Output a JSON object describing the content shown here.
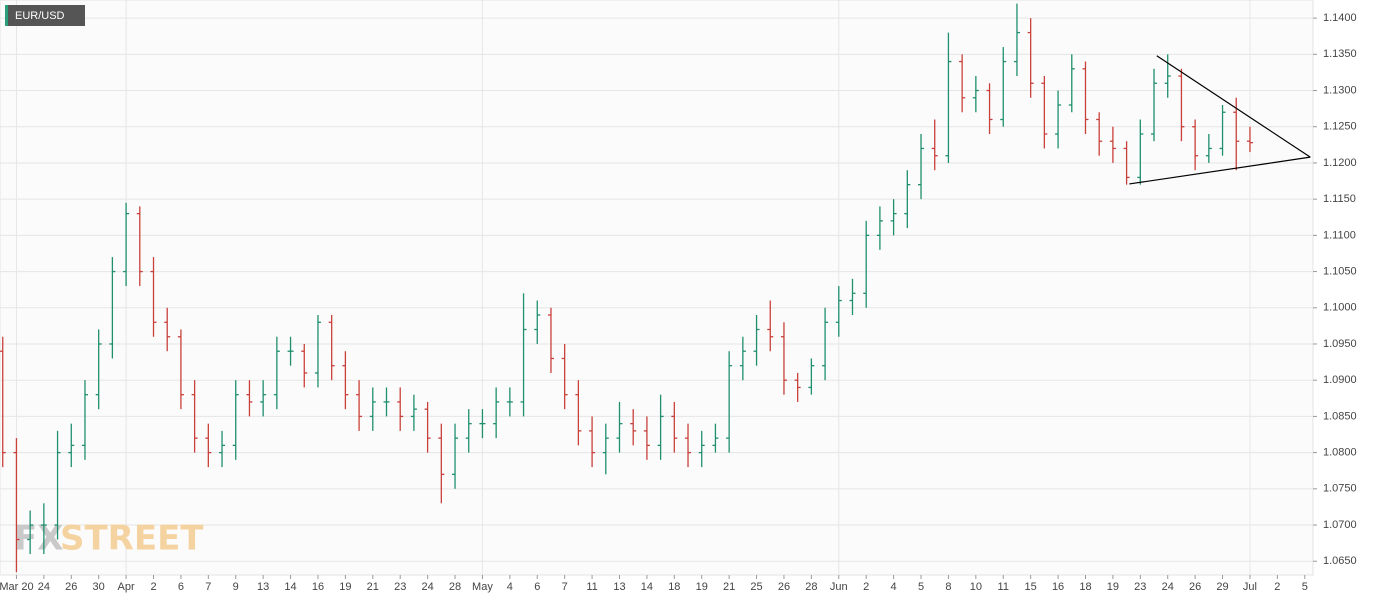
{
  "chart_data": {
    "type": "ohlc",
    "title": "EUR/USD",
    "watermark": [
      "FX",
      "STREET"
    ],
    "up_color": "#1f8f6e",
    "down_color": "#c9403a",
    "grid": true,
    "ylim": [
      1.0631,
      1.1425
    ],
    "yticks": [
      {
        "value": 1.065,
        "label": "1.0650"
      },
      {
        "value": 1.07,
        "label": "1.0700"
      },
      {
        "value": 1.075,
        "label": "1.0750"
      },
      {
        "value": 1.08,
        "label": "1.0800"
      },
      {
        "value": 1.085,
        "label": "1.0850"
      },
      {
        "value": 1.09,
        "label": "1.0900"
      },
      {
        "value": 1.095,
        "label": "1.0950"
      },
      {
        "value": 1.1,
        "label": "1.1000"
      },
      {
        "value": 1.105,
        "label": "1.1050"
      },
      {
        "value": 1.11,
        "label": "1.1100"
      },
      {
        "value": 1.115,
        "label": "1.1150"
      },
      {
        "value": 1.12,
        "label": "1.1200"
      },
      {
        "value": 1.125,
        "label": "1.1250"
      },
      {
        "value": 1.13,
        "label": "1.1300"
      },
      {
        "value": 1.135,
        "label": "1.1350"
      },
      {
        "value": 1.14,
        "label": "1.1400"
      }
    ],
    "xlim": [
      -0.6,
      47.3
    ],
    "xticks": [
      {
        "value": 0,
        "label": "Mar 20"
      },
      {
        "value": 1,
        "label": "24"
      },
      {
        "value": 2,
        "label": "26"
      },
      {
        "value": 3,
        "label": "30"
      },
      {
        "value": 4,
        "label": "Apr"
      },
      {
        "value": 5,
        "label": "2"
      },
      {
        "value": 6,
        "label": "6"
      },
      {
        "value": 7,
        "label": "7"
      },
      {
        "value": 8,
        "label": "9"
      },
      {
        "value": 9,
        "label": "13"
      },
      {
        "value": 10,
        "label": "14"
      },
      {
        "value": 11,
        "label": "16"
      },
      {
        "value": 12,
        "label": "19"
      },
      {
        "value": 13,
        "label": "21"
      },
      {
        "value": 14,
        "label": "23"
      },
      {
        "value": 15,
        "label": "24"
      },
      {
        "value": 16,
        "label": "28"
      },
      {
        "value": 17,
        "label": "May"
      },
      {
        "value": 18,
        "label": "4"
      },
      {
        "value": 19,
        "label": "6"
      },
      {
        "value": 20,
        "label": "7"
      },
      {
        "value": 21,
        "label": "11"
      },
      {
        "value": 22,
        "label": "13"
      },
      {
        "value": 23,
        "label": "14"
      },
      {
        "value": 24,
        "label": "18"
      },
      {
        "value": 25,
        "label": "19"
      },
      {
        "value": 26,
        "label": "21"
      },
      {
        "value": 27,
        "label": "25"
      },
      {
        "value": 28,
        "label": "26"
      },
      {
        "value": 29,
        "label": "28"
      },
      {
        "value": 30,
        "label": "Jun"
      },
      {
        "value": 31,
        "label": "2"
      },
      {
        "value": 32,
        "label": "4"
      },
      {
        "value": 33,
        "label": "5"
      },
      {
        "value": 34,
        "label": "8"
      },
      {
        "value": 35,
        "label": "10"
      },
      {
        "value": 36,
        "label": "11"
      },
      {
        "value": 37,
        "label": "15"
      },
      {
        "value": 38,
        "label": "16"
      },
      {
        "value": 39,
        "label": "18"
      },
      {
        "value": 40,
        "label": "19"
      },
      {
        "value": 41,
        "label": "23"
      },
      {
        "value": 42,
        "label": "24"
      },
      {
        "value": 43,
        "label": "26"
      },
      {
        "value": 44,
        "label": "29"
      },
      {
        "value": 45,
        "label": "Jul"
      },
      {
        "value": 46,
        "label": "2"
      },
      {
        "value": 47,
        "label": "5"
      }
    ],
    "x": [
      -0.5,
      0,
      0.5,
      1,
      1.5,
      2,
      2.5,
      3,
      3.5,
      4,
      4.5,
      5,
      5.5,
      6,
      6.5,
      7,
      7.5,
      8,
      8.5,
      9,
      9.5,
      10,
      10.5,
      11,
      11.5,
      12,
      12.5,
      13,
      13.5,
      14,
      14.5,
      15,
      15.5,
      16,
      16.5,
      17,
      17.5,
      18,
      18.5,
      19,
      19.5,
      20,
      20.5,
      21,
      21.5,
      22,
      22.5,
      23,
      23.5,
      24,
      24.5,
      25,
      25.5,
      26,
      26.5,
      27,
      27.5,
      28,
      28.5,
      29,
      29.5,
      30,
      30.5,
      31,
      31.5,
      32,
      32.5,
      33,
      33.5,
      34,
      34.5,
      35,
      35.5,
      36,
      36.5,
      37,
      37.5,
      38,
      38.5,
      39,
      39.5,
      40,
      40.5,
      41,
      41.5,
      42,
      42.5,
      43,
      43.5,
      44,
      44.5,
      45
    ],
    "open": [
      1.094,
      1.08,
      1.068,
      1.07,
      1.07,
      1.08,
      1.081,
      1.088,
      1.095,
      1.105,
      1.113,
      1.105,
      1.098,
      1.096,
      1.088,
      1.082,
      1.08,
      1.081,
      1.088,
      1.087,
      1.088,
      1.094,
      1.094,
      1.091,
      1.098,
      1.092,
      1.088,
      1.085,
      1.087,
      1.087,
      1.085,
      1.086,
      1.082,
      1.077,
      1.082,
      1.084,
      1.084,
      1.087,
      1.087,
      1.097,
      1.099,
      1.093,
      1.088,
      1.083,
      1.08,
      1.082,
      1.084,
      1.083,
      1.081,
      1.085,
      1.082,
      1.08,
      1.081,
      1.082,
      1.092,
      1.094,
      1.097,
      1.096,
      1.09,
      1.089,
      1.092,
      1.098,
      1.101,
      1.102,
      1.11,
      1.112,
      1.113,
      1.117,
      1.122,
      1.121,
      1.134,
      1.129,
      1.13,
      1.126,
      1.134,
      1.138,
      1.131,
      1.124,
      1.128,
      1.133,
      1.126,
      1.123,
      1.122,
      1.118,
      1.124,
      1.131,
      1.132,
      1.125,
      1.121,
      1.122,
      1.127,
      1.123
    ],
    "high": [
      1.096,
      1.082,
      1.072,
      1.073,
      1.083,
      1.084,
      1.09,
      1.097,
      1.107,
      1.1145,
      1.114,
      1.107,
      1.1,
      1.097,
      1.09,
      1.084,
      1.083,
      1.09,
      1.09,
      1.09,
      1.096,
      1.096,
      1.095,
      1.099,
      1.099,
      1.094,
      1.09,
      1.089,
      1.089,
      1.089,
      1.088,
      1.087,
      1.084,
      1.084,
      1.086,
      1.086,
      1.089,
      1.089,
      1.102,
      1.101,
      1.1,
      1.095,
      1.09,
      1.085,
      1.084,
      1.087,
      1.086,
      1.085,
      1.088,
      1.087,
      1.084,
      1.083,
      1.084,
      1.094,
      1.096,
      1.099,
      1.101,
      1.098,
      1.091,
      1.093,
      1.1,
      1.103,
      1.104,
      1.112,
      1.114,
      1.115,
      1.119,
      1.124,
      1.126,
      1.138,
      1.135,
      1.132,
      1.131,
      1.136,
      1.142,
      1.14,
      1.132,
      1.13,
      1.135,
      1.134,
      1.127,
      1.125,
      1.123,
      1.126,
      1.133,
      1.135,
      1.133,
      1.126,
      1.124,
      1.128,
      1.129,
      1.125
    ],
    "low": [
      1.078,
      1.0635,
      1.066,
      1.066,
      1.068,
      1.078,
      1.079,
      1.086,
      1.093,
      1.103,
      1.103,
      1.096,
      1.094,
      1.086,
      1.08,
      1.078,
      1.078,
      1.079,
      1.085,
      1.085,
      1.086,
      1.092,
      1.089,
      1.089,
      1.09,
      1.086,
      1.083,
      1.083,
      1.085,
      1.083,
      1.083,
      1.08,
      1.073,
      1.075,
      1.08,
      1.082,
      1.082,
      1.085,
      1.085,
      1.095,
      1.091,
      1.086,
      1.081,
      1.078,
      1.077,
      1.08,
      1.081,
      1.079,
      1.079,
      1.08,
      1.078,
      1.078,
      1.08,
      1.08,
      1.09,
      1.092,
      1.094,
      1.088,
      1.087,
      1.088,
      1.09,
      1.096,
      1.099,
      1.1,
      1.108,
      1.11,
      1.111,
      1.115,
      1.119,
      1.12,
      1.127,
      1.127,
      1.124,
      1.125,
      1.132,
      1.129,
      1.122,
      1.122,
      1.127,
      1.124,
      1.121,
      1.12,
      1.117,
      1.117,
      1.123,
      1.129,
      1.123,
      1.119,
      1.12,
      1.121,
      1.119,
      1.1215
    ],
    "close": [
      1.08,
      1.068,
      1.07,
      1.07,
      1.08,
      1.081,
      1.088,
      1.095,
      1.105,
      1.113,
      1.105,
      1.098,
      1.096,
      1.088,
      1.082,
      1.08,
      1.081,
      1.088,
      1.087,
      1.088,
      1.094,
      1.094,
      1.091,
      1.098,
      1.092,
      1.088,
      1.085,
      1.087,
      1.087,
      1.085,
      1.086,
      1.082,
      1.077,
      1.082,
      1.084,
      1.084,
      1.087,
      1.087,
      1.097,
      1.099,
      1.093,
      1.088,
      1.083,
      1.08,
      1.082,
      1.084,
      1.083,
      1.081,
      1.085,
      1.082,
      1.08,
      1.081,
      1.082,
      1.092,
      1.094,
      1.097,
      1.096,
      1.09,
      1.089,
      1.092,
      1.098,
      1.101,
      1.102,
      1.11,
      1.112,
      1.113,
      1.117,
      1.122,
      1.121,
      1.134,
      1.129,
      1.13,
      1.126,
      1.134,
      1.138,
      1.131,
      1.124,
      1.128,
      1.133,
      1.126,
      1.123,
      1.122,
      1.118,
      1.124,
      1.131,
      1.132,
      1.125,
      1.121,
      1.122,
      1.127,
      1.123,
      1.1228
    ],
    "trendlines": [
      {
        "x": [
          41.6,
          47.2
        ],
        "y": [
          1.1348,
          1.1208
        ]
      },
      {
        "x": [
          40.6,
          47.2
        ],
        "y": [
          1.1171,
          1.1208
        ]
      }
    ]
  }
}
